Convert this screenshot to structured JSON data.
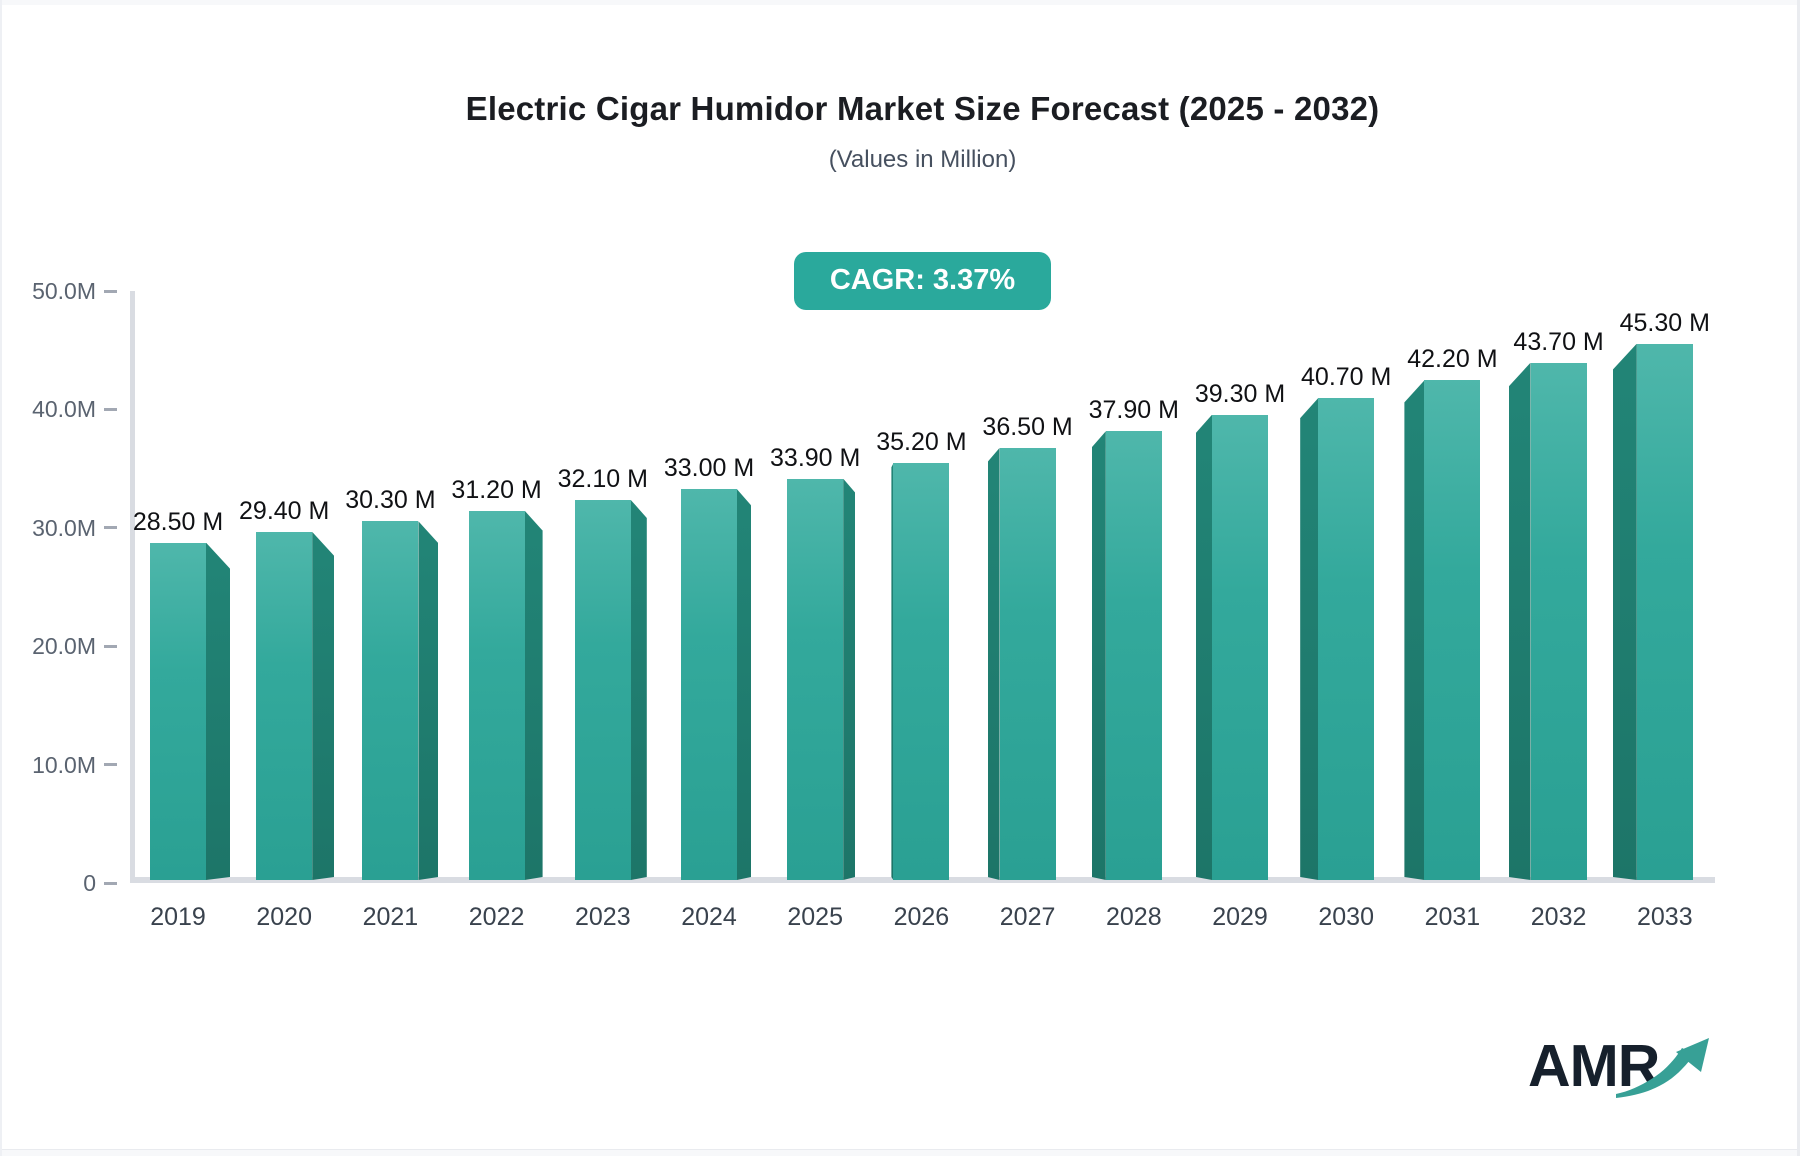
{
  "header": {
    "title": "Electric Cigar Humidor Market Size Forecast (2025 - 2032)",
    "subtitle": "(Values in Million)",
    "cagr_badge": "CAGR: 3.37%"
  },
  "chart_data": {
    "type": "bar",
    "title": "Electric Cigar Humidor Market Size Forecast (2025 - 2032)",
    "subtitle": "(Values in Million)",
    "unit": "Million",
    "categories": [
      "2019",
      "2020",
      "2021",
      "2022",
      "2023",
      "2024",
      "2025",
      "2026",
      "2027",
      "2028",
      "2029",
      "2030",
      "2031",
      "2032",
      "2033"
    ],
    "values": [
      28.5,
      29.4,
      30.3,
      31.2,
      32.1,
      33.0,
      33.9,
      35.2,
      36.5,
      37.9,
      39.3,
      40.7,
      42.2,
      43.7,
      45.3
    ],
    "value_labels": [
      "28.50 M",
      "29.40 M",
      "30.30 M",
      "31.20 M",
      "32.10 M",
      "33.00 M",
      "33.90 M",
      "35.20 M",
      "36.50 M",
      "37.90 M",
      "39.30 M",
      "40.70 M",
      "42.20 M",
      "43.70 M",
      "45.30 M"
    ],
    "cagr": "CAGR: 3.37%",
    "ylabel": "",
    "ylim": [
      0,
      50
    ],
    "y_ticks": [
      "50.0M",
      "40.0M",
      "30.0M",
      "20.0M",
      "10.0M",
      "0"
    ],
    "grid": false,
    "legend": false,
    "colors": {
      "bar_face_top": "#4fb7ab",
      "bar_face": "#33a99c",
      "bar_face_bottom": "#2aa093",
      "bar_side_top": "#228577",
      "bar_side_bottom": "#1d7568",
      "axis": "#d9dce2",
      "tick": "#a2a8b3",
      "badge_bg": "#2aa99c",
      "badge_text": "#ffffff"
    }
  },
  "logo": {
    "text": "AMR"
  }
}
